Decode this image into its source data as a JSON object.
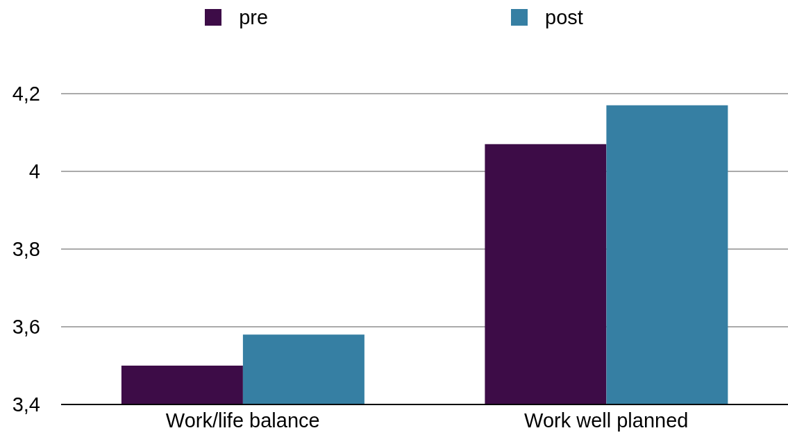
{
  "chart_data": {
    "type": "bar",
    "categories": [
      "Work/life balance",
      "Work well planned"
    ],
    "series": [
      {
        "name": "pre",
        "color": "#3d0c47",
        "values": [
          3.5,
          4.07
        ]
      },
      {
        "name": "post",
        "color": "#367fa3",
        "values": [
          3.58,
          4.17
        ]
      }
    ],
    "ylim": [
      3.4,
      4.2
    ],
    "yticks": [
      {
        "value": 3.4,
        "label": "3,4"
      },
      {
        "value": 3.6,
        "label": "3,6"
      },
      {
        "value": 3.8,
        "label": "3,8"
      },
      {
        "value": 4,
        "label": "4"
      },
      {
        "value": 4.2,
        "label": "4,2"
      }
    ],
    "grid": "y",
    "legend": "top"
  }
}
